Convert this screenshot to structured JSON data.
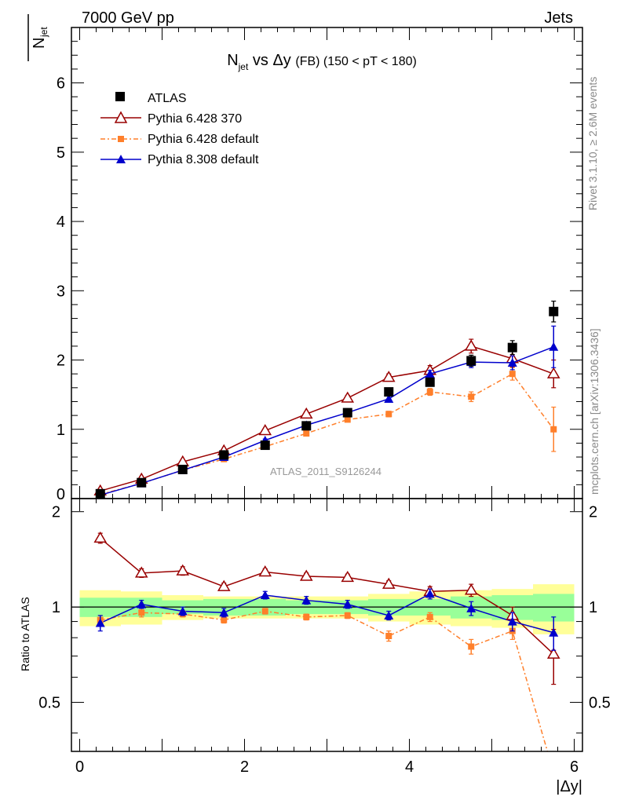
{
  "header": {
    "left": "7000 GeV pp",
    "right": "Jets"
  },
  "title": {
    "main": "N",
    "main_sub": "jet",
    "middle": " vs Δy ",
    "fb": "(FB)",
    "range": " (150 < pT < 180)"
  },
  "ylabel_top": {
    "main": "N",
    "sub": "jet"
  },
  "ylabel_bottom": "Ratio to ATLAS",
  "xlabel": "|Δy|",
  "side_text": {
    "rivet": "Rivet 3.1.10, ≥ 2.6M events",
    "mcplots": "mcplots.cern.ch [arXiv:1306.3436]"
  },
  "watermark": "ATLAS_2011_S9126244",
  "colors": {
    "atlas": "#000000",
    "pythia6_370": "#990000",
    "pythia6_default": "#ff7f2a",
    "pythia8": "#0000cc",
    "band_inner": "#99ff99",
    "band_outer": "#ffff99"
  },
  "chart_data": [
    {
      "type": "scatter",
      "panel": "main",
      "ylabel": "N_jet",
      "xlim": [
        -0.1,
        6.1
      ],
      "ylim": [
        0,
        6.8
      ],
      "xticks": [
        "0",
        "2",
        "4",
        "6"
      ],
      "yticks": [
        "0",
        "1",
        "2",
        "3",
        "4",
        "5",
        "6"
      ],
      "x": [
        0.25,
        0.75,
        1.25,
        1.75,
        2.25,
        2.75,
        3.25,
        3.75,
        4.25,
        4.75,
        5.25,
        5.75
      ],
      "series": [
        {
          "name": "ATLAS",
          "values": [
            0.07,
            0.23,
            0.42,
            0.63,
            0.77,
            1.05,
            1.24,
            1.54,
            1.68,
            1.99,
            2.18,
            2.7
          ],
          "errors": [
            0.01,
            0.01,
            0.01,
            0.02,
            0.02,
            0.03,
            0.03,
            0.04,
            0.05,
            0.08,
            0.1,
            0.15
          ]
        },
        {
          "name": "Pythia 6.428 370",
          "values": [
            0.11,
            0.28,
            0.53,
            0.69,
            0.98,
            1.22,
            1.45,
            1.75,
            1.85,
            2.2,
            2.02,
            1.8
          ],
          "errors": [
            0.01,
            0.01,
            0.02,
            0.02,
            0.03,
            0.03,
            0.04,
            0.05,
            0.07,
            0.1,
            0.12,
            0.2
          ]
        },
        {
          "name": "Pythia 6.428 default",
          "values": [
            0.06,
            0.22,
            0.41,
            0.57,
            0.75,
            0.94,
            1.14,
            1.22,
            1.54,
            1.47,
            1.8,
            1.0
          ],
          "errors": [
            0.01,
            0.01,
            0.01,
            0.02,
            0.02,
            0.03,
            0.03,
            0.04,
            0.05,
            0.07,
            0.09,
            0.32
          ]
        },
        {
          "name": "Pythia 8.308 default",
          "values": [
            0.05,
            0.22,
            0.41,
            0.6,
            0.84,
            1.06,
            1.24,
            1.44,
            1.8,
            1.97,
            1.96,
            2.19
          ],
          "errors": [
            0.01,
            0.01,
            0.01,
            0.02,
            0.02,
            0.03,
            0.03,
            0.04,
            0.05,
            0.08,
            0.1,
            0.3
          ]
        }
      ]
    },
    {
      "type": "scatter",
      "panel": "ratio",
      "ylabel": "Ratio to ATLAS",
      "xlabel": "|Δy|",
      "xlim": [
        -0.1,
        6.1
      ],
      "ylim": [
        0.35,
        2.2
      ],
      "xticks": [
        "0",
        "2",
        "4",
        "6"
      ],
      "yticks": [
        "0.5",
        "1",
        "2"
      ],
      "x": [
        0.25,
        0.75,
        1.25,
        1.75,
        2.25,
        2.75,
        3.25,
        3.75,
        4.25,
        4.75,
        5.25,
        5.75
      ],
      "bands": {
        "bin_edges": [
          0,
          0.5,
          1.0,
          1.5,
          2.0,
          2.5,
          3.0,
          3.5,
          4.0,
          4.5,
          5.0,
          5.5,
          6.0
        ],
        "inner_half_width": [
          0.07,
          0.07,
          0.05,
          0.06,
          0.06,
          0.05,
          0.05,
          0.06,
          0.06,
          0.08,
          0.09,
          0.1
        ],
        "outer_half_width": [
          0.13,
          0.12,
          0.09,
          0.08,
          0.08,
          0.08,
          0.08,
          0.1,
          0.12,
          0.13,
          0.14,
          0.18
        ]
      },
      "series": [
        {
          "name": "Pythia 6.428 370",
          "values": [
            1.65,
            1.28,
            1.3,
            1.16,
            1.29,
            1.25,
            1.24,
            1.18,
            1.12,
            1.13,
            0.94,
            0.71
          ],
          "errors": [
            0.06,
            0.04,
            0.04,
            0.03,
            0.03,
            0.03,
            0.03,
            0.03,
            0.04,
            0.05,
            0.06,
            0.14
          ]
        },
        {
          "name": "Pythia 6.428 default",
          "values": [
            0.91,
            0.96,
            0.95,
            0.91,
            0.97,
            0.93,
            0.94,
            0.81,
            0.93,
            0.75,
            0.84,
            0.3
          ],
          "errors": [
            0.03,
            0.03,
            0.02,
            0.02,
            0.02,
            0.02,
            0.02,
            0.03,
            0.03,
            0.04,
            0.05,
            0.1
          ]
        },
        {
          "name": "Pythia 8.308 default",
          "values": [
            0.89,
            1.02,
            0.97,
            0.96,
            1.09,
            1.05,
            1.02,
            0.94,
            1.1,
            0.99,
            0.9,
            0.83
          ],
          "errors": [
            0.05,
            0.03,
            0.03,
            0.03,
            0.03,
            0.03,
            0.03,
            0.03,
            0.04,
            0.05,
            0.06,
            0.1
          ]
        }
      ]
    }
  ]
}
